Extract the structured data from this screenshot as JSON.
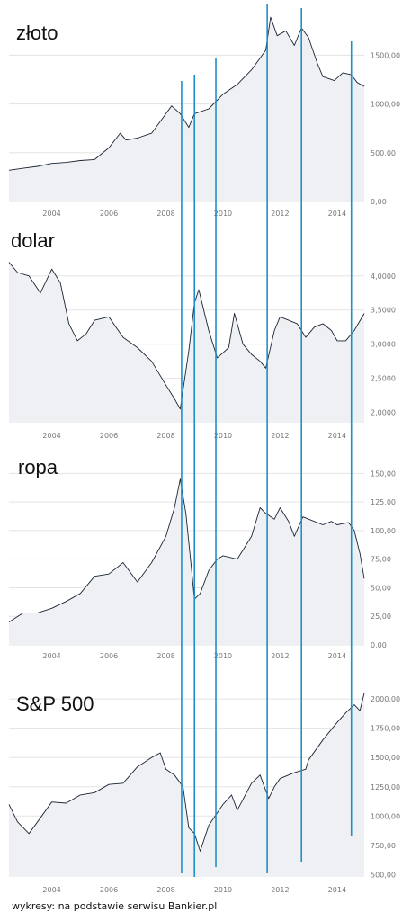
{
  "source_note": "wykresy: na podstawie serwisu Bankier.pl",
  "colors": {
    "series": "#1b2433",
    "markers": "#1f8fc9",
    "grid": "#e3e3e3",
    "area": "#eef0f4"
  },
  "chart_data": [
    {
      "type": "line",
      "title": "złoto",
      "xlabel": "",
      "ylabel": "",
      "xlim": [
        2002.5,
        2014.95
      ],
      "ylim": [
        0,
        1900
      ],
      "x_ticks": [
        "2004",
        "2006",
        "2008",
        "2010",
        "2012",
        "2014"
      ],
      "y_ticks": [
        "1500,00",
        "1000,00",
        "500,00",
        "0,00"
      ],
      "grid": true,
      "series": [
        {
          "x": [
            2002.5,
            2003.0,
            2003.5,
            2004.0,
            2004.5,
            2005.0,
            2005.5,
            2006.0,
            2006.4,
            2006.6,
            2007.0,
            2007.5,
            2008.0,
            2008.2,
            2008.5,
            2008.8,
            2009.0,
            2009.5,
            2010.0,
            2010.5,
            2011.0,
            2011.5,
            2011.67,
            2011.9,
            2012.2,
            2012.5,
            2012.75,
            2013.0,
            2013.3,
            2013.5,
            2013.9,
            2014.2,
            2014.5,
            2014.7,
            2014.95
          ],
          "y": [
            320,
            340,
            360,
            390,
            400,
            420,
            430,
            550,
            700,
            630,
            650,
            700,
            900,
            980,
            900,
            760,
            900,
            950,
            1100,
            1200,
            1350,
            1550,
            1890,
            1700,
            1750,
            1600,
            1780,
            1680,
            1420,
            1280,
            1240,
            1320,
            1300,
            1220,
            1180
          ]
        }
      ]
    },
    {
      "type": "line",
      "title": "dolar",
      "xlabel": "",
      "ylabel": "",
      "xlim": [
        2002.5,
        2014.95
      ],
      "ylim": [
        1.85,
        4.3
      ],
      "x_ticks": [
        "2004",
        "2006",
        "2008",
        "2010",
        "2012",
        "2014"
      ],
      "y_ticks": [
        "4,0000",
        "3,5000",
        "3,0000",
        "2,5000",
        "2,0000"
      ],
      "grid": true,
      "series": [
        {
          "x": [
            2002.5,
            2002.8,
            2003.2,
            2003.6,
            2004.0,
            2004.3,
            2004.6,
            2004.9,
            2005.2,
            2005.5,
            2006.0,
            2006.5,
            2007.0,
            2007.5,
            2008.0,
            2008.3,
            2008.5,
            2008.8,
            2009.0,
            2009.15,
            2009.5,
            2009.8,
            2010.2,
            2010.4,
            2010.7,
            2011.0,
            2011.3,
            2011.5,
            2011.8,
            2012.0,
            2012.3,
            2012.6,
            2012.9,
            2013.2,
            2013.5,
            2013.8,
            2014.0,
            2014.3,
            2014.6,
            2014.95
          ],
          "y": [
            4.2,
            4.05,
            4.0,
            3.75,
            4.1,
            3.9,
            3.3,
            3.05,
            3.15,
            3.35,
            3.4,
            3.1,
            2.95,
            2.75,
            2.4,
            2.2,
            2.05,
            2.9,
            3.6,
            3.8,
            3.2,
            2.8,
            2.95,
            3.45,
            3.0,
            2.85,
            2.75,
            2.65,
            3.2,
            3.4,
            3.35,
            3.3,
            3.1,
            3.25,
            3.3,
            3.2,
            3.05,
            3.05,
            3.2,
            3.45
          ]
        }
      ]
    },
    {
      "type": "line",
      "title": "ropa",
      "xlabel": "",
      "ylabel": "",
      "xlim": [
        2002.5,
        2014.95
      ],
      "ylim": [
        0,
        155
      ],
      "x_ticks": [
        "2004",
        "2006",
        "2008",
        "2010",
        "2012",
        "2014"
      ],
      "y_ticks": [
        "150,00",
        "125,00",
        "100,00",
        "75,00",
        "50,00",
        "25,00",
        "0,00"
      ],
      "grid": true,
      "series": [
        {
          "x": [
            2002.5,
            2003.0,
            2003.5,
            2004.0,
            2004.5,
            2005.0,
            2005.5,
            2006.0,
            2006.5,
            2007.0,
            2007.5,
            2008.0,
            2008.3,
            2008.5,
            2008.7,
            2008.9,
            2009.0,
            2009.2,
            2009.5,
            2009.8,
            2010.0,
            2010.5,
            2011.0,
            2011.3,
            2011.5,
            2011.8,
            2012.0,
            2012.3,
            2012.5,
            2012.8,
            2013.0,
            2013.5,
            2013.8,
            2014.0,
            2014.4,
            2014.6,
            2014.8,
            2014.95
          ],
          "y": [
            20,
            28,
            28,
            32,
            38,
            45,
            60,
            62,
            72,
            55,
            72,
            95,
            120,
            145,
            115,
            65,
            40,
            45,
            65,
            75,
            78,
            75,
            95,
            120,
            115,
            110,
            120,
            108,
            95,
            112,
            110,
            105,
            108,
            105,
            107,
            100,
            80,
            58
          ]
        }
      ]
    },
    {
      "type": "line",
      "title": "S&P 500",
      "xlabel": "",
      "ylabel": "",
      "xlim": [
        2002.5,
        2014.95
      ],
      "ylim": [
        480,
        2070
      ],
      "x_ticks": [
        "2004",
        "2006",
        "2008",
        "2010",
        "2012",
        "2014"
      ],
      "y_ticks": [
        "2000,00",
        "1750,00",
        "1500,00",
        "1250,00",
        "1000,00",
        "750,00",
        "500,00"
      ],
      "grid": true,
      "series": [
        {
          "x": [
            2002.5,
            2002.8,
            2003.0,
            2003.2,
            2003.5,
            2004.0,
            2004.5,
            2005.0,
            2005.5,
            2006.0,
            2006.5,
            2007.0,
            2007.5,
            2007.8,
            2008.0,
            2008.3,
            2008.6,
            2008.8,
            2009.0,
            2009.2,
            2009.5,
            2010.0,
            2010.3,
            2010.5,
            2011.0,
            2011.3,
            2011.6,
            2011.8,
            2012.0,
            2012.5,
            2012.9,
            2013.0,
            2013.5,
            2014.0,
            2014.3,
            2014.6,
            2014.8,
            2014.95
          ],
          "y": [
            1100,
            950,
            900,
            850,
            950,
            1120,
            1110,
            1180,
            1200,
            1270,
            1280,
            1420,
            1500,
            1540,
            1400,
            1350,
            1250,
            900,
            850,
            700,
            920,
            1100,
            1180,
            1050,
            1280,
            1350,
            1150,
            1250,
            1320,
            1370,
            1400,
            1480,
            1650,
            1800,
            1880,
            1950,
            1900,
            2050
          ]
        }
      ]
    }
  ],
  "event_markers": [
    {
      "x": 2008.55,
      "y_top": 90,
      "y_bottom": 971
    },
    {
      "x": 2009.0,
      "y_top": 83,
      "y_bottom": 975
    },
    {
      "x": 2009.75,
      "y_top": 64,
      "y_bottom": 964
    },
    {
      "x": 2011.55,
      "y_top": 4,
      "y_bottom": 971
    },
    {
      "x": 2012.75,
      "y_top": 9,
      "y_bottom": 958
    },
    {
      "x": 2014.5,
      "y_top": 46,
      "y_bottom": 930
    }
  ]
}
